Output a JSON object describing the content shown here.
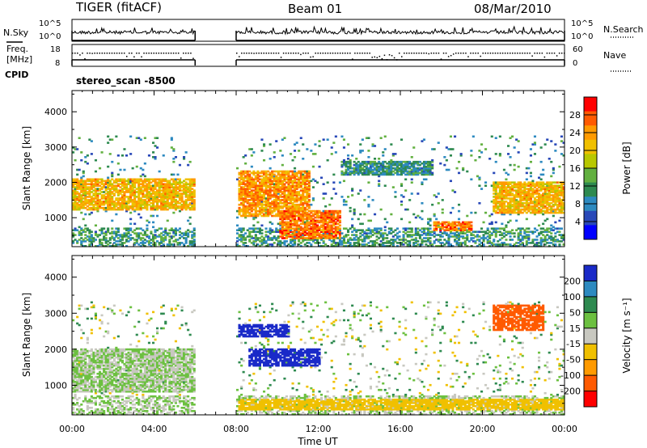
{
  "header": {
    "station": "TIGER (fitACF)",
    "beam": "Beam 01",
    "date": "08/Mar/2010"
  },
  "nsky": {
    "label": "N.Sky",
    "ticks": [
      "10^5",
      "10^0"
    ],
    "right_label": "N.Search",
    "right_ticks": [
      "10^5",
      "10^0"
    ]
  },
  "freq": {
    "label_line1": "Freq.",
    "label_line2": "[MHz]",
    "ticks": [
      "18",
      "8"
    ],
    "right_label": "Nave",
    "right_ticks": [
      "60",
      "0"
    ]
  },
  "cpid": {
    "label": "CPID",
    "value": "stereo_scan -8500"
  },
  "time_axis": {
    "label": "Time UT",
    "ticks": [
      "00:00",
      "04:00",
      "08:00",
      "12:00",
      "16:00",
      "20:00",
      "00:00"
    ]
  },
  "panels": {
    "power": {
      "ylabel": "Slant Range [km]",
      "yticks": [
        "4000",
        "3000",
        "2000",
        "1000"
      ],
      "cbar_label": "Power [dB]",
      "cbar_ticks": [
        "28",
        "24",
        "20",
        "16",
        "12",
        "8",
        "4"
      ],
      "cbar_colors": [
        "#ff0000",
        "#ff5a00",
        "#ff9a00",
        "#f0c000",
        "#b8c800",
        "#62b040",
        "#2e8a50",
        "#2d8ac0",
        "#2848b8",
        "#0000ff"
      ]
    },
    "velocity": {
      "ylabel": "Slant Range [km]",
      "yticks": [
        "4000",
        "3000",
        "2000",
        "1000"
      ],
      "cbar_label": "Velocity [m s⁻¹]",
      "cbar_ticks": [
        "200",
        "100",
        "50",
        "15",
        "-15",
        "-50",
        "-100",
        "-200"
      ],
      "cbar_colors": [
        "#1a2ac8",
        "#2d8ac0",
        "#2e8a50",
        "#6cc040",
        "#c8c8c0",
        "#f0c000",
        "#ff9a00",
        "#ff5a00",
        "#ff0000"
      ]
    }
  },
  "chart_data": [
    {
      "type": "heatmap",
      "title": "Power",
      "xlabel": "Time UT",
      "ylabel": "Slant Range [km]",
      "xlim": [
        "00:00",
        "24:00"
      ],
      "ylim": [
        180,
        4600
      ],
      "colorbar": {
        "label": "Power [dB]",
        "range": [
          0,
          32
        ]
      },
      "data_gap": [
        "06:00",
        "08:00"
      ],
      "features": [
        {
          "hours": [
            0.0,
            6.0
          ],
          "range_km": [
            1200,
            2100
          ],
          "value_db": 22
        },
        {
          "hours": [
            8.0,
            11.5
          ],
          "range_km": [
            1000,
            2300
          ],
          "value_db": 24
        },
        {
          "hours": [
            10.0,
            13.0
          ],
          "range_km": [
            400,
            1200
          ],
          "value_db": 26
        },
        {
          "hours": [
            13.0,
            17.5
          ],
          "range_km": [
            2200,
            2600
          ],
          "value_db": 10
        },
        {
          "hours": [
            17.5,
            19.5
          ],
          "range_km": [
            600,
            900
          ],
          "value_db": 26
        },
        {
          "hours": [
            20.5,
            24.0
          ],
          "range_km": [
            1100,
            2000
          ],
          "value_db": 22
        }
      ]
    },
    {
      "type": "heatmap",
      "title": "Velocity",
      "xlabel": "Time UT",
      "ylabel": "Slant Range [km]",
      "xlim": [
        "00:00",
        "24:00"
      ],
      "ylim": [
        180,
        4600
      ],
      "colorbar": {
        "label": "Velocity [m s-1]",
        "range": [
          -250,
          250
        ]
      },
      "data_gap": [
        "06:00",
        "08:00"
      ],
      "features": [
        {
          "hours": [
            0.0,
            6.0
          ],
          "range_km": [
            800,
            2000
          ],
          "value_ms": 0
        },
        {
          "hours": [
            8.0,
            10.5
          ],
          "range_km": [
            2300,
            2700
          ],
          "value_ms": 200
        },
        {
          "hours": [
            8.5,
            12.0
          ],
          "range_km": [
            1500,
            2000
          ],
          "value_ms": 200
        },
        {
          "hours": [
            8.0,
            24.0
          ],
          "range_km": [
            300,
            600
          ],
          "value_ms": -50
        },
        {
          "hours": [
            20.5,
            23.0
          ],
          "range_km": [
            2500,
            3200
          ],
          "value_ms": -200
        }
      ]
    }
  ]
}
